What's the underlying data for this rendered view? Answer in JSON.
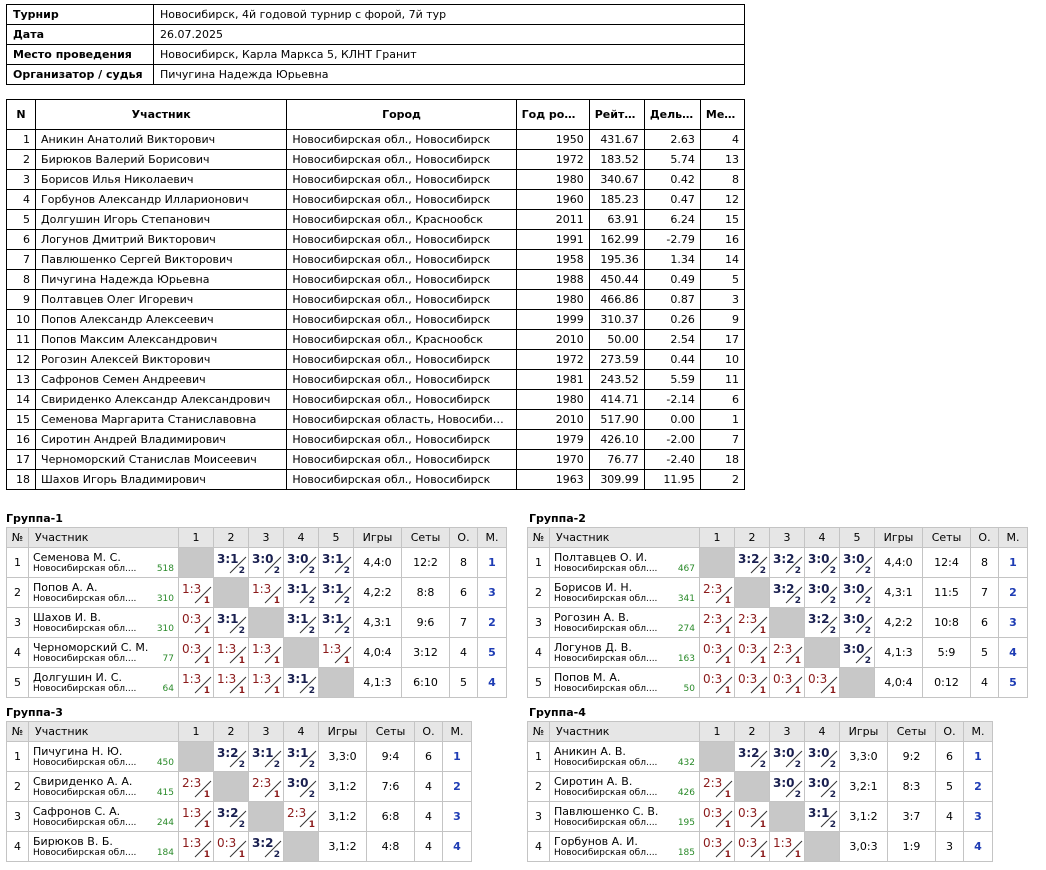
{
  "info": [
    {
      "k": "Турнир",
      "v": "Новосибирск, 4й годовой турнир с форой, 7й тур"
    },
    {
      "k": "Дата",
      "v": "26.07.2025"
    },
    {
      "k": "Место проведения",
      "v": "Новосибирск, Карла Маркса 5, КЛНТ Гранит"
    },
    {
      "k": "Организатор / судья",
      "v": "Пичугина Надежда Юрьевна"
    }
  ],
  "players": {
    "headers": [
      "N",
      "Участник",
      "Город",
      "Год рожд.",
      "Рейтинг",
      "Дельта",
      "Место"
    ],
    "rows": [
      [
        "1",
        "Аникин Анатолий Викторович",
        "Новосибирская обл., Новосибирск",
        "1950",
        "431.67",
        "2.63",
        "4"
      ],
      [
        "2",
        "Бирюков Валерий Борисович",
        "Новосибирская обл., Новосибирск",
        "1972",
        "183.52",
        "5.74",
        "13"
      ],
      [
        "3",
        "Борисов Илья Николаевич",
        "Новосибирская обл., Новосибирск",
        "1980",
        "340.67",
        "0.42",
        "8"
      ],
      [
        "4",
        "Горбунов Александр Илларионович",
        "Новосибирская обл., Новосибирск",
        "1960",
        "185.23",
        "0.47",
        "12"
      ],
      [
        "5",
        "Долгушин Игорь Степанович",
        "Новосибирская обл., Краснообск",
        "2011",
        "63.91",
        "6.24",
        "15"
      ],
      [
        "6",
        "Логунов Дмитрий Викторович",
        "Новосибирская обл., Новосибирск",
        "1991",
        "162.99",
        "-2.79",
        "16"
      ],
      [
        "7",
        "Павлюшенко Сергей Викторович",
        "Новосибирская обл., Новосибирск",
        "1958",
        "195.36",
        "1.34",
        "14"
      ],
      [
        "8",
        "Пичугина Надежда Юрьевна",
        "Новосибирская обл., Новосибирск",
        "1988",
        "450.44",
        "0.49",
        "5"
      ],
      [
        "9",
        "Полтавцев Олег Игоревич",
        "Новосибирская обл., Новосибирск",
        "1980",
        "466.86",
        "0.87",
        "3"
      ],
      [
        "10",
        "Попов Александр Алексеевич",
        "Новосибирская обл., Новосибирск",
        "1999",
        "310.37",
        "0.26",
        "9"
      ],
      [
        "11",
        "Попов Максим Александрович",
        "Новосибирская обл., Краснообск",
        "2010",
        "50.00",
        "2.54",
        "17"
      ],
      [
        "12",
        "Рогозин Алексей Викторович",
        "Новосибирская обл., Новосибирск",
        "1972",
        "273.59",
        "0.44",
        "10"
      ],
      [
        "13",
        "Сафронов Семен Андреевич",
        "Новосибирская обл., Новосибирск",
        "1981",
        "243.52",
        "5.59",
        "11"
      ],
      [
        "14",
        "Свириденко Александр Александрович",
        "Новосибирская обл., Новосибирск",
        "1980",
        "414.71",
        "-2.14",
        "6"
      ],
      [
        "15",
        "Семенова Маргарита Станиславовна",
        "Новосибирская область, Новосибирск",
        "2010",
        "517.90",
        "0.00",
        "1"
      ],
      [
        "16",
        "Сиротин Андрей Владимирович",
        "Новосибирская обл., Новосибирск",
        "1979",
        "426.10",
        "-2.00",
        "7"
      ],
      [
        "17",
        "Черноморский Станислав Моисеевич",
        "Новосибирская обл., Новосибирск",
        "1970",
        "76.77",
        "-2.40",
        "18"
      ],
      [
        "18",
        "Шахов Игорь Владимирович",
        "Новосибирская обл., Новосибирск",
        "1963",
        "309.99",
        "11.95",
        "2"
      ]
    ]
  },
  "groups": [
    {
      "title": "Группа-1",
      "headers": {
        "no": "№",
        "player": "Участник",
        "games": "Игры",
        "sets": "Сеты",
        "points": "О.",
        "place": "М."
      },
      "rows": [
        {
          "no": "1",
          "name": "Семенова М. С.",
          "city": "Новосибирская обл....",
          "rating": "518",
          "res": [
            "x",
            "3:1/2",
            "3:0/2",
            "3:0/2",
            "3:1/2"
          ],
          "games": "4,4:0",
          "sets": "12:2",
          "points": "8",
          "place": "1"
        },
        {
          "no": "2",
          "name": "Попов А. А.",
          "city": "Новосибирская обл....",
          "rating": "310",
          "res": [
            "1:3/1",
            "x",
            "1:3/1",
            "3:1/2",
            "3:1/2"
          ],
          "games": "4,2:2",
          "sets": "8:8",
          "points": "6",
          "place": "3"
        },
        {
          "no": "3",
          "name": "Шахов И. В.",
          "city": "Новосибирская обл....",
          "rating": "310",
          "res": [
            "0:3/1",
            "3:1/2",
            "x",
            "3:1/2",
            "3:1/2"
          ],
          "games": "4,3:1",
          "sets": "9:6",
          "points": "7",
          "place": "2"
        },
        {
          "no": "4",
          "name": "Черноморский С. М.",
          "city": "Новосибирская обл....",
          "rating": "77",
          "res": [
            "0:3/1",
            "1:3/1",
            "1:3/1",
            "x",
            "1:3/1"
          ],
          "games": "4,0:4",
          "sets": "3:12",
          "points": "4",
          "place": "5"
        },
        {
          "no": "5",
          "name": "Долгушин И. С.",
          "city": "Новосибирская обл....",
          "rating": "64",
          "res": [
            "1:3/1",
            "1:3/1",
            "1:3/1",
            "3:1/2",
            "x"
          ],
          "games": "4,1:3",
          "sets": "6:10",
          "points": "5",
          "place": "4"
        }
      ]
    },
    {
      "title": "Группа-2",
      "headers": {
        "no": "№",
        "player": "Участник",
        "games": "Игры",
        "sets": "Сеты",
        "points": "О.",
        "place": "М."
      },
      "rows": [
        {
          "no": "1",
          "name": "Полтавцев О. И.",
          "city": "Новосибирская обл....",
          "rating": "467",
          "res": [
            "x",
            "3:2/2",
            "3:2/2",
            "3:0/2",
            "3:0/2"
          ],
          "games": "4,4:0",
          "sets": "12:4",
          "points": "8",
          "place": "1"
        },
        {
          "no": "2",
          "name": "Борисов И. Н.",
          "city": "Новосибирская обл....",
          "rating": "341",
          "res": [
            "2:3/1",
            "x",
            "3:2/2",
            "3:0/2",
            "3:0/2"
          ],
          "games": "4,3:1",
          "sets": "11:5",
          "points": "7",
          "place": "2"
        },
        {
          "no": "3",
          "name": "Рогозин А. В.",
          "city": "Новосибирская обл....",
          "rating": "274",
          "res": [
            "2:3/1",
            "2:3/1",
            "x",
            "3:2/2",
            "3:0/2"
          ],
          "games": "4,2:2",
          "sets": "10:8",
          "points": "6",
          "place": "3"
        },
        {
          "no": "4",
          "name": "Логунов Д. В.",
          "city": "Новосибирская обл....",
          "rating": "163",
          "res": [
            "0:3/1",
            "0:3/1",
            "2:3/1",
            "x",
            "3:0/2"
          ],
          "games": "4,1:3",
          "sets": "5:9",
          "points": "5",
          "place": "4"
        },
        {
          "no": "5",
          "name": "Попов М. А.",
          "city": "Новосибирская обл....",
          "rating": "50",
          "res": [
            "0:3/1",
            "0:3/1",
            "0:3/1",
            "0:3/1",
            "x"
          ],
          "games": "4,0:4",
          "sets": "0:12",
          "points": "4",
          "place": "5"
        }
      ]
    },
    {
      "title": "Группа-3",
      "headers": {
        "no": "№",
        "player": "Участник",
        "games": "Игры",
        "sets": "Сеты",
        "points": "О.",
        "place": "М."
      },
      "rows": [
        {
          "no": "1",
          "name": "Пичугина Н. Ю.",
          "city": "Новосибирская обл....",
          "rating": "450",
          "res": [
            "x",
            "3:2/2",
            "3:1/2",
            "3:1/2"
          ],
          "games": "3,3:0",
          "sets": "9:4",
          "points": "6",
          "place": "1"
        },
        {
          "no": "2",
          "name": "Свириденко А. А.",
          "city": "Новосибирская обл....",
          "rating": "415",
          "res": [
            "2:3/1",
            "x",
            "2:3/1",
            "3:0/2"
          ],
          "games": "3,1:2",
          "sets": "7:6",
          "points": "4",
          "place": "2"
        },
        {
          "no": "3",
          "name": "Сафронов С. А.",
          "city": "Новосибирская обл....",
          "rating": "244",
          "res": [
            "1:3/1",
            "3:2/2",
            "x",
            "2:3/1"
          ],
          "games": "3,1:2",
          "sets": "6:8",
          "points": "4",
          "place": "3"
        },
        {
          "no": "4",
          "name": "Бирюков В. Б.",
          "city": "Новосибирская обл....",
          "rating": "184",
          "res": [
            "1:3/1",
            "0:3/1",
            "3:2/2",
            "x"
          ],
          "games": "3,1:2",
          "sets": "4:8",
          "points": "4",
          "place": "4"
        }
      ]
    },
    {
      "title": "Группа-4",
      "headers": {
        "no": "№",
        "player": "Участник",
        "games": "Игры",
        "sets": "Сеты",
        "points": "О.",
        "place": "М."
      },
      "rows": [
        {
          "no": "1",
          "name": "Аникин А. В.",
          "city": "Новосибирская обл....",
          "rating": "432",
          "res": [
            "x",
            "3:2/2",
            "3:0/2",
            "3:0/2"
          ],
          "games": "3,3:0",
          "sets": "9:2",
          "points": "6",
          "place": "1"
        },
        {
          "no": "2",
          "name": "Сиротин А. В.",
          "city": "Новосибирская обл....",
          "rating": "426",
          "res": [
            "2:3/1",
            "x",
            "3:0/2",
            "3:0/2"
          ],
          "games": "3,2:1",
          "sets": "8:3",
          "points": "5",
          "place": "2"
        },
        {
          "no": "3",
          "name": "Павлюшенко С. В.",
          "city": "Новосибирская обл....",
          "rating": "195",
          "res": [
            "0:3/1",
            "0:3/1",
            "x",
            "3:1/2"
          ],
          "games": "3,1:2",
          "sets": "3:7",
          "points": "4",
          "place": "3"
        },
        {
          "no": "4",
          "name": "Горбунов А. И.",
          "city": "Новосибирская обл....",
          "rating": "185",
          "res": [
            "0:3/1",
            "0:3/1",
            "1:3/1",
            "x"
          ],
          "games": "3,0:3",
          "sets": "1:9",
          "points": "3",
          "place": "4"
        }
      ]
    }
  ]
}
